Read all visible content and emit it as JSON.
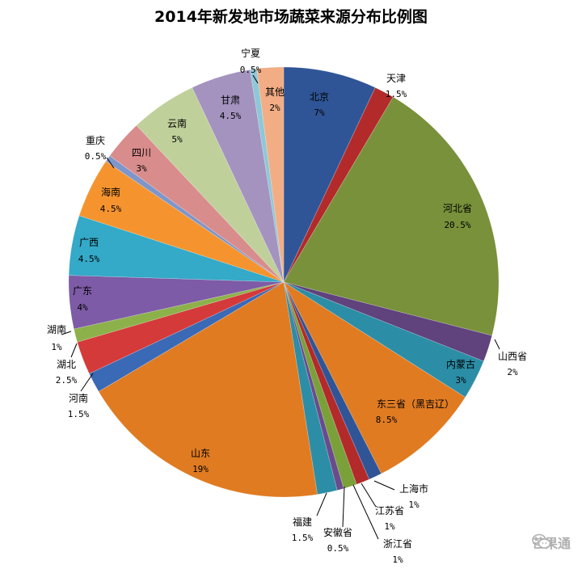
{
  "chart_data": {
    "type": "pie",
    "title": "2014年新发地市场蔬菜来源分布比例图",
    "slices": [
      {
        "label": "北京",
        "value": 7,
        "value_label": "7%",
        "color": "#2F5597"
      },
      {
        "label": "天津",
        "value": 1.5,
        "value_label": "1.5%",
        "color": "#B22A2A"
      },
      {
        "label": "河北省",
        "value": 20.5,
        "value_label": "20.5%",
        "color": "#78913A"
      },
      {
        "label": "山西省",
        "value": 2,
        "value_label": "2%",
        "color": "#60427C"
      },
      {
        "label": "内蒙古",
        "value": 3,
        "value_label": "3%",
        "color": "#2C8DA6"
      },
      {
        "label": "东三省（黑吉辽）",
        "value": 8.5,
        "value_label": "8.5%",
        "color": "#E07B22"
      },
      {
        "label": "上海市",
        "value": 1,
        "value_label": "1%",
        "color": "#2F5597"
      },
      {
        "label": "江苏省",
        "value": 1,
        "value_label": "1%",
        "color": "#B22A2A"
      },
      {
        "label": "浙江省",
        "value": 1,
        "value_label": "1%",
        "color": "#7AA03A"
      },
      {
        "label": "安徽省",
        "value": 0.5,
        "value_label": "0.5%",
        "color": "#6A4B8C"
      },
      {
        "label": "福建",
        "value": 1.5,
        "value_label": "1.5%",
        "color": "#2C8DA6"
      },
      {
        "label": "山东",
        "value": 19,
        "value_label": "19%",
        "color": "#E07B22"
      },
      {
        "label": "河南",
        "value": 1.5,
        "value_label": "1.5%",
        "color": "#3A69B5"
      },
      {
        "label": "湖北",
        "value": 2.5,
        "value_label": "2.5%",
        "color": "#D43A3A"
      },
      {
        "label": "湖南",
        "value": 1,
        "value_label": "1%",
        "color": "#8DB14A"
      },
      {
        "label": "广东",
        "value": 4,
        "value_label": "4%",
        "color": "#7D5BA6"
      },
      {
        "label": "广西",
        "value": 4.5,
        "value_label": "4.5%",
        "color": "#34A9C8"
      },
      {
        "label": "海南",
        "value": 4.5,
        "value_label": "4.5%",
        "color": "#F5942E"
      },
      {
        "label": "重庆",
        "value": 0.5,
        "value_label": "0.5%",
        "color": "#7E96C9"
      },
      {
        "label": "四川",
        "value": 3,
        "value_label": "3%",
        "color": "#D98C8C"
      },
      {
        "label": "云南",
        "value": 5,
        "value_label": "5%",
        "color": "#BFD09A"
      },
      {
        "label": "甘肃",
        "value": 4.5,
        "value_label": "4.5%",
        "color": "#A493BF"
      },
      {
        "label": "宁夏",
        "value": 0.5,
        "value_label": "0.5%",
        "color": "#8EC8D8"
      },
      {
        "label": "其他",
        "value": 2,
        "value_label": "2%",
        "color": "#F2AD85"
      }
    ]
  },
  "watermark": {
    "text": "芒果通",
    "icon": "wechat-icon"
  }
}
